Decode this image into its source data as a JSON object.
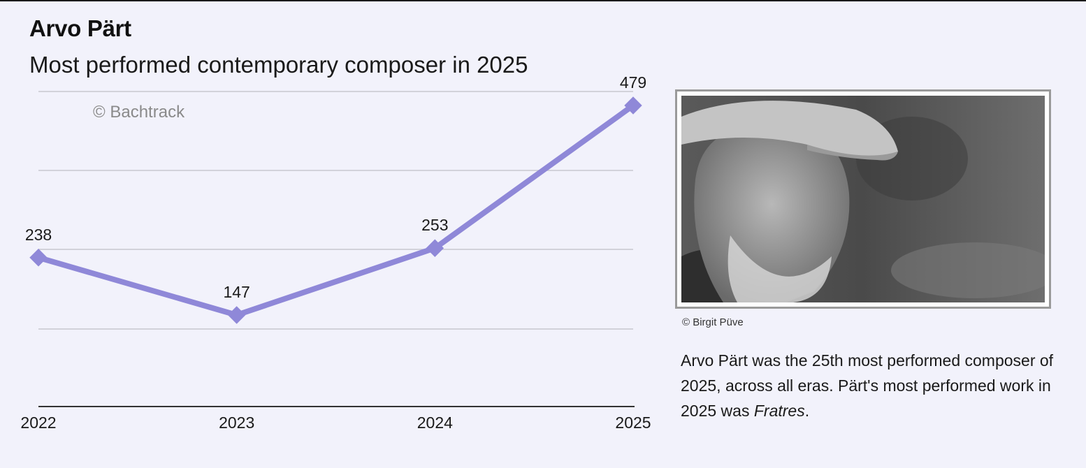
{
  "header": {
    "title": "Arvo Pärt",
    "subtitle": "Most performed contemporary composer in 2025"
  },
  "chart_data": {
    "type": "line",
    "x": [
      "2022",
      "2023",
      "2024",
      "2025"
    ],
    "values": [
      238,
      147,
      253,
      479
    ],
    "watermark": "© Bachtrack",
    "ylim": [
      0,
      479
    ],
    "grid": true,
    "line_color": "#8f88d8",
    "grid_color": "#c8c8d0",
    "axis_color": "#333333"
  },
  "photo": {
    "alt_icon": "portrait-photo",
    "credit": "© Birgit Püve"
  },
  "caption": {
    "text_before": "Arvo Pärt was the 25th most performed composer of 2025, across all eras. Pärt's most performed work in 2025 was ",
    "work": "Fratres",
    "text_after": "."
  }
}
